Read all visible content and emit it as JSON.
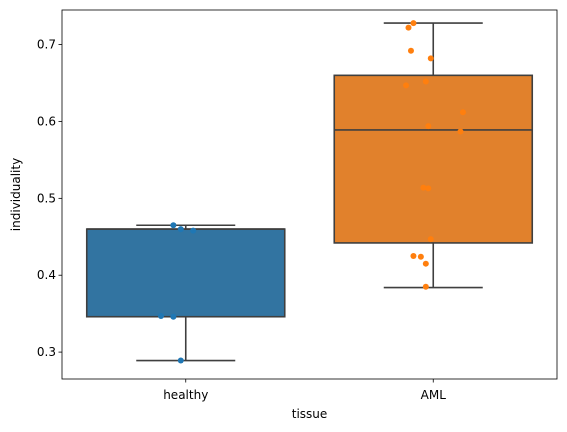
{
  "chart_data": {
    "type": "box",
    "xlabel": "tissue",
    "ylabel": "individuality",
    "ylim": [
      0.265,
      0.745
    ],
    "yticks": [
      0.3,
      0.4,
      0.5,
      0.6,
      0.7
    ],
    "ytick_labels": [
      "0.3",
      "0.4",
      "0.5",
      "0.6",
      "0.7"
    ],
    "grid": false,
    "categories": [
      "healthy",
      "AML"
    ],
    "boxes": [
      {
        "category": "healthy",
        "color": "#3274a1",
        "point_color": "#1f77b4",
        "whisker_low": 0.289,
        "q1": 0.346,
        "median": 0.46,
        "q3": 0.46,
        "whisker_high": 0.465,
        "points": [
          {
            "x": -0.05,
            "y": 0.465
          },
          {
            "x": -0.02,
            "y": 0.46
          },
          {
            "x": 0.03,
            "y": 0.458
          },
          {
            "x": -0.1,
            "y": 0.347
          },
          {
            "x": -0.05,
            "y": 0.346
          },
          {
            "x": -0.02,
            "y": 0.289
          }
        ]
      },
      {
        "category": "AML",
        "color": "#e1812c",
        "point_color": "#ff7f0e",
        "whisker_low": 0.384,
        "q1": 0.442,
        "median": 0.589,
        "q3": 0.66,
        "whisker_high": 0.728,
        "points": [
          {
            "x": -0.08,
            "y": 0.728
          },
          {
            "x": -0.1,
            "y": 0.722
          },
          {
            "x": -0.09,
            "y": 0.692
          },
          {
            "x": -0.01,
            "y": 0.682
          },
          {
            "x": -0.11,
            "y": 0.647
          },
          {
            "x": -0.03,
            "y": 0.652
          },
          {
            "x": 0.12,
            "y": 0.612
          },
          {
            "x": -0.02,
            "y": 0.594
          },
          {
            "x": 0.11,
            "y": 0.587
          },
          {
            "x": -0.04,
            "y": 0.514
          },
          {
            "x": -0.02,
            "y": 0.513
          },
          {
            "x": -0.01,
            "y": 0.447
          },
          {
            "x": -0.08,
            "y": 0.425
          },
          {
            "x": -0.05,
            "y": 0.424
          },
          {
            "x": -0.03,
            "y": 0.415
          },
          {
            "x": -0.03,
            "y": 0.385
          }
        ]
      }
    ]
  }
}
